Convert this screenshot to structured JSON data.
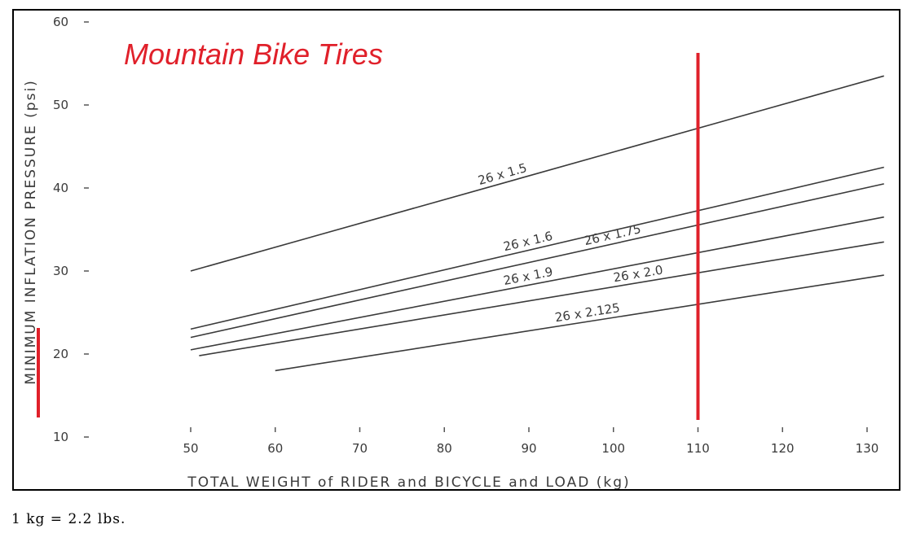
{
  "chart_data": {
    "type": "line",
    "title": "Mountain Bike Tires",
    "xlabel": "TOTAL WEIGHT of RIDER and BICYCLE and LOAD (kg)",
    "ylabel": "MINIMUM INFLATION PRESSURE (psi)",
    "xlim": [
      50,
      130
    ],
    "ylim": [
      10,
      60
    ],
    "x_ticks": [
      50,
      60,
      70,
      80,
      90,
      100,
      110,
      120,
      130
    ],
    "y_ticks": [
      10,
      20,
      30,
      40,
      50,
      60
    ],
    "grid": false,
    "series": [
      {
        "name": "26 x 1.5",
        "x": [
          50,
          132
        ],
        "y": [
          30.0,
          53.5
        ]
      },
      {
        "name": "26 x 1.6",
        "x": [
          50,
          132
        ],
        "y": [
          23.0,
          42.5
        ]
      },
      {
        "name": "26 x 1.75",
        "x": [
          50,
          132
        ],
        "y": [
          22.0,
          40.5
        ]
      },
      {
        "name": "26 x 1.9",
        "x": [
          50,
          132
        ],
        "y": [
          20.5,
          36.5
        ]
      },
      {
        "name": "26 x 2.0",
        "x": [
          51,
          132
        ],
        "y": [
          19.8,
          33.5
        ]
      },
      {
        "name": "26 x 2.125",
        "x": [
          60,
          132
        ],
        "y": [
          18.0,
          29.5
        ]
      }
    ],
    "annotations": [
      {
        "type": "vertical-line",
        "x": 110,
        "color": "#e0202a"
      }
    ],
    "title_color": "#e0202a",
    "line_color": "#3a3a3a"
  },
  "footnote": "1 kg = 2.2 lbs."
}
